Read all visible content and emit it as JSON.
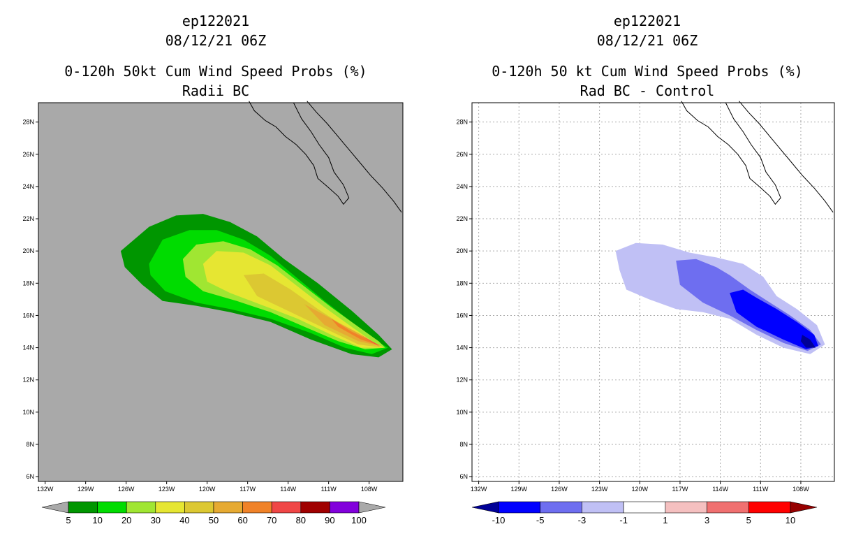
{
  "panels": [
    {
      "storm_id": "ep122021",
      "datetime": "08/12/21 06Z",
      "title": "0-120h 50kt Cum Wind Speed Probs (%)",
      "subtitle": "Radii BC",
      "background": "#a9a9a9",
      "colorbar": {
        "labels": [
          "5",
          "10",
          "20",
          "30",
          "40",
          "50",
          "60",
          "70",
          "80",
          "90",
          "100"
        ],
        "colors": [
          "#009600",
          "#00dc00",
          "#a0e632",
          "#e6e632",
          "#dcc832",
          "#e6aa32",
          "#f08228",
          "#f04646",
          "#a00000",
          "#8200dc"
        ],
        "under_color": "#a9a9a9",
        "over_color": "#a9a9a9"
      }
    },
    {
      "storm_id": "ep122021",
      "datetime": "08/12/21 06Z",
      "title": "0-120h 50 kt Cum Wind Speed Probs (%)",
      "subtitle": "Rad BC - Control",
      "background": "#ffffff",
      "colorbar": {
        "labels": [
          "-10",
          "-5",
          "-3",
          "-1",
          "1",
          "3",
          "5",
          "10"
        ],
        "colors": [
          "#0000ff",
          "#6e6ef0",
          "#c0c0f5",
          "#ffffff",
          "#f5c0c0",
          "#f07070",
          "#ff0000"
        ],
        "under_color": "#000096",
        "over_color": "#960000"
      }
    }
  ],
  "chart_data": [
    {
      "type": "heatmap",
      "title": "0-120h 50kt Cum Wind Speed Probs (%)",
      "subtitle": "Radii BC",
      "x_tick_labels": [
        "132W",
        "129W",
        "126W",
        "123W",
        "120W",
        "117W",
        "114W",
        "111W",
        "108W"
      ],
      "y_tick_labels": [
        "6N",
        "8N",
        "10N",
        "12N",
        "14N",
        "16N",
        "18N",
        "20N",
        "22N",
        "24N",
        "26N",
        "28N"
      ],
      "xlim": [
        -132.5,
        -105.5
      ],
      "ylim": [
        5.7,
        29.2
      ],
      "units": "%",
      "contours": [
        {
          "level": 5,
          "color": "#009600",
          "polygon": [
            [
              -126.4,
              20.0
            ],
            [
              -124.3,
              21.5
            ],
            [
              -122.3,
              22.2
            ],
            [
              -120.3,
              22.3
            ],
            [
              -118.3,
              21.8
            ],
            [
              -116.3,
              20.9
            ],
            [
              -114.3,
              19.5
            ],
            [
              -111.8,
              18.0
            ],
            [
              -109.3,
              16.3
            ],
            [
              -107.3,
              14.8
            ],
            [
              -106.3,
              13.9
            ],
            [
              -107.3,
              13.4
            ],
            [
              -109.3,
              13.6
            ],
            [
              -112.3,
              14.5
            ],
            [
              -115.3,
              15.6
            ],
            [
              -118.3,
              16.2
            ],
            [
              -120.8,
              16.6
            ],
            [
              -123.3,
              16.9
            ],
            [
              -124.8,
              17.9
            ],
            [
              -126.1,
              19.0
            ]
          ]
        },
        {
          "level": 10,
          "color": "#00dc00",
          "polygon": [
            [
              -124.3,
              19.2
            ],
            [
              -123.3,
              20.7
            ],
            [
              -121.3,
              21.3
            ],
            [
              -119.3,
              21.3
            ],
            [
              -117.3,
              20.7
            ],
            [
              -115.3,
              19.7
            ],
            [
              -113.3,
              18.3
            ],
            [
              -111.3,
              16.9
            ],
            [
              -109.3,
              15.6
            ],
            [
              -107.8,
              14.6
            ],
            [
              -106.6,
              14.0
            ],
            [
              -107.8,
              13.6
            ],
            [
              -109.8,
              14.0
            ],
            [
              -112.3,
              14.9
            ],
            [
              -115.3,
              15.8
            ],
            [
              -118.3,
              16.4
            ],
            [
              -120.8,
              16.8
            ],
            [
              -123.1,
              17.5
            ],
            [
              -124.2,
              18.5
            ]
          ]
        },
        {
          "level": 20,
          "color": "#a0e632",
          "polygon": [
            [
              -121.8,
              19.5
            ],
            [
              -120.8,
              20.4
            ],
            [
              -118.8,
              20.6
            ],
            [
              -116.8,
              20.1
            ],
            [
              -114.8,
              19.1
            ],
            [
              -112.8,
              17.8
            ],
            [
              -110.8,
              16.5
            ],
            [
              -108.8,
              15.3
            ],
            [
              -107.3,
              14.4
            ],
            [
              -106.8,
              14.0
            ],
            [
              -108.3,
              13.9
            ],
            [
              -110.3,
              14.4
            ],
            [
              -112.8,
              15.3
            ],
            [
              -115.3,
              16.2
            ],
            [
              -117.8,
              16.9
            ],
            [
              -120.3,
              17.5
            ],
            [
              -121.6,
              18.4
            ]
          ]
        },
        {
          "level": 30,
          "color": "#e6e632",
          "polygon": [
            [
              -120.3,
              19.2
            ],
            [
              -119.3,
              20.0
            ],
            [
              -117.3,
              19.9
            ],
            [
              -115.3,
              19.1
            ],
            [
              -113.3,
              17.8
            ],
            [
              -111.3,
              16.5
            ],
            [
              -109.3,
              15.3
            ],
            [
              -107.6,
              14.3
            ],
            [
              -106.9,
              14.0
            ],
            [
              -108.6,
              14.0
            ],
            [
              -110.8,
              14.8
            ],
            [
              -113.3,
              15.8
            ],
            [
              -115.8,
              16.6
            ],
            [
              -118.3,
              17.4
            ],
            [
              -120.0,
              18.1
            ]
          ]
        },
        {
          "level": 40,
          "color": "#dcc832",
          "polygon": [
            [
              -117.3,
              18.5
            ],
            [
              -115.8,
              18.6
            ],
            [
              -113.8,
              17.6
            ],
            [
              -111.8,
              16.4
            ],
            [
              -109.8,
              15.3
            ],
            [
              -107.9,
              14.3
            ],
            [
              -107.0,
              14.0
            ],
            [
              -108.8,
              14.2
            ],
            [
              -111.3,
              15.2
            ],
            [
              -113.8,
              16.2
            ],
            [
              -116.3,
              17.2
            ]
          ]
        },
        {
          "level": 50,
          "color": "#e6aa32",
          "polygon": [
            [
              -112.8,
              16.7
            ],
            [
              -110.8,
              15.8
            ],
            [
              -108.8,
              14.9
            ],
            [
              -107.2,
              14.1
            ],
            [
              -108.8,
              14.4
            ],
            [
              -111.3,
              15.4
            ]
          ]
        },
        {
          "level": 60,
          "color": "#f08228",
          "polygon": [
            [
              -110.8,
              15.8
            ],
            [
              -109.3,
              15.0
            ],
            [
              -107.8,
              14.4
            ],
            [
              -107.1,
              14.1
            ],
            [
              -108.6,
              14.5
            ],
            [
              -110.3,
              15.3
            ]
          ]
        },
        {
          "level": 70,
          "color": "#f04646",
          "polygon": [
            [
              -108.6,
              14.8
            ],
            [
              -107.6,
              14.3
            ],
            [
              -107.1,
              14.0
            ],
            [
              -107.9,
              14.4
            ]
          ]
        }
      ]
    },
    {
      "type": "heatmap",
      "title": "0-120h 50 kt Cum Wind Speed Probs (%)",
      "subtitle": "Rad BC - Control",
      "x_tick_labels": [
        "132W",
        "129W",
        "126W",
        "123W",
        "120W",
        "117W",
        "114W",
        "111W",
        "108W"
      ],
      "y_tick_labels": [
        "6N",
        "8N",
        "10N",
        "12N",
        "14N",
        "16N",
        "18N",
        "20N",
        "22N",
        "24N",
        "26N",
        "28N"
      ],
      "xlim": [
        -132.5,
        -105.5
      ],
      "ylim": [
        5.7,
        29.2
      ],
      "grid": true,
      "units": "%",
      "contours": [
        {
          "level": -1,
          "color": "#c0c0f5",
          "polygon": [
            [
              -121.8,
              20.0
            ],
            [
              -120.3,
              20.5
            ],
            [
              -118.3,
              20.4
            ],
            [
              -116.3,
              19.9
            ],
            [
              -114.3,
              19.6
            ],
            [
              -112.3,
              19.2
            ],
            [
              -110.8,
              18.4
            ],
            [
              -109.8,
              17.2
            ],
            [
              -108.3,
              16.4
            ],
            [
              -106.8,
              15.4
            ],
            [
              -106.2,
              14.2
            ],
            [
              -107.3,
              13.6
            ],
            [
              -109.3,
              14.0
            ],
            [
              -111.3,
              14.8
            ],
            [
              -113.3,
              15.8
            ],
            [
              -115.3,
              16.2
            ],
            [
              -117.3,
              16.4
            ],
            [
              -119.3,
              17.0
            ],
            [
              -121.0,
              17.6
            ],
            [
              -121.5,
              18.8
            ]
          ]
        },
        {
          "level": -3,
          "color": "#6e6ef0",
          "polygon": [
            [
              -117.3,
              19.4
            ],
            [
              -115.8,
              19.5
            ],
            [
              -114.3,
              19.0
            ],
            [
              -113.3,
              18.5
            ],
            [
              -111.8,
              17.6
            ],
            [
              -110.3,
              16.8
            ],
            [
              -108.8,
              16.0
            ],
            [
              -107.3,
              15.1
            ],
            [
              -106.5,
              14.2
            ],
            [
              -107.5,
              13.8
            ],
            [
              -109.3,
              14.3
            ],
            [
              -111.3,
              15.1
            ],
            [
              -113.3,
              16.0
            ],
            [
              -115.3,
              16.8
            ],
            [
              -117.0,
              17.9
            ]
          ]
        },
        {
          "level": -5,
          "color": "#0000ff",
          "polygon": [
            [
              -113.3,
              17.4
            ],
            [
              -112.3,
              17.6
            ],
            [
              -111.3,
              17.1
            ],
            [
              -109.8,
              16.4
            ],
            [
              -108.3,
              15.6
            ],
            [
              -107.0,
              14.8
            ],
            [
              -106.7,
              14.1
            ],
            [
              -107.6,
              13.9
            ],
            [
              -109.3,
              14.5
            ],
            [
              -111.3,
              15.3
            ],
            [
              -112.8,
              16.2
            ]
          ]
        },
        {
          "level": -10,
          "color": "#000096",
          "polygon": [
            [
              -107.9,
              14.8
            ],
            [
              -107.3,
              14.5
            ],
            [
              -106.9,
              14.0
            ],
            [
              -107.6,
              14.0
            ],
            [
              -108.0,
              14.4
            ]
          ]
        }
      ]
    }
  ]
}
